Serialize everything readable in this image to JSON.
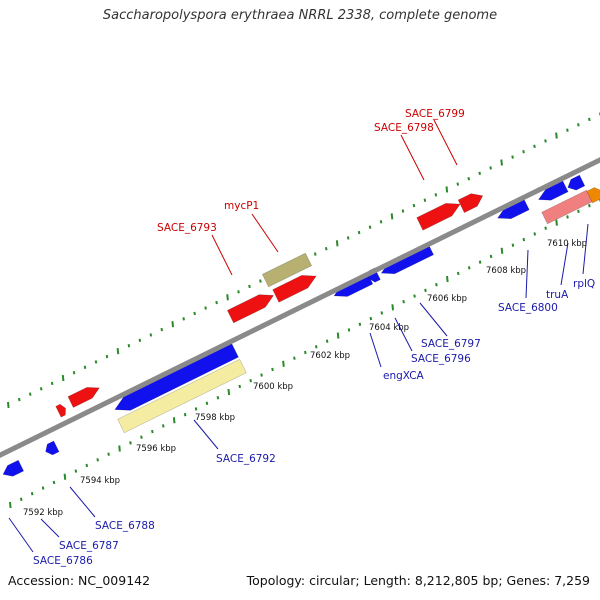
{
  "title": "Saccharopolyspora erythraea NRRL 2338, complete genome",
  "footer": {
    "accession": "Accession: NC_009142",
    "stats": "Topology: circular; Length: 8,212,805 bp; Genes: 7,259"
  },
  "colors": {
    "backbone": "#888888",
    "tick": "#2a8a2a",
    "forward_cds": "#ee1111",
    "reverse_cds": "#1111ee",
    "forward_label": "#cc0000",
    "reverse_label": "#1a1aaa",
    "pseudo_forward": "#b8b070",
    "pseudo_reverse": "#f4eca0",
    "rna_forward": "#f08080",
    "orange": "#ee8800"
  },
  "ticks": [
    {
      "label": "7592 kbp"
    },
    {
      "label": "7594 kbp"
    },
    {
      "label": "7596 kbp"
    },
    {
      "label": "7598 kbp"
    },
    {
      "label": "7600 kbp"
    },
    {
      "label": "7602 kbp"
    },
    {
      "label": "7604 kbp"
    },
    {
      "label": "7606 kbp"
    },
    {
      "label": "7608 kbp"
    },
    {
      "label": "7610 kbp"
    }
  ],
  "gene_labels": {
    "forward": [
      "SACE_6799",
      "SACE_6798",
      "mycP1",
      "SACE_6793"
    ],
    "reverse": [
      "SACE_6800",
      "truA",
      "rplQ",
      "SACE_6797",
      "SACE_6796",
      "engXCA",
      "SACE_6792",
      "SACE_6788",
      "SACE_6787",
      "SACE_6786"
    ]
  }
}
